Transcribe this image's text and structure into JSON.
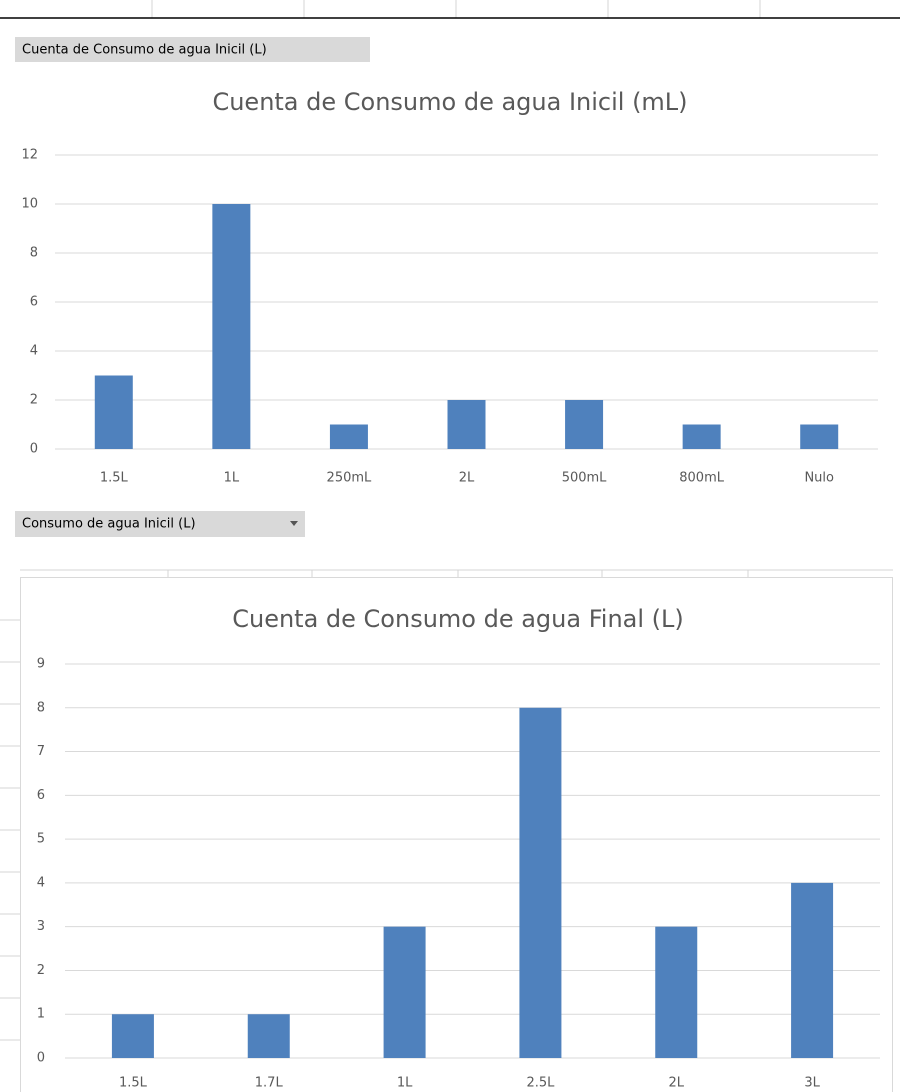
{
  "pivot_labels": {
    "values_field": "Cuenta de Consumo de agua Inicil  (L)",
    "axis_field": "Consumo de agua Inicil  (L)"
  },
  "chart_data": [
    {
      "type": "bar",
      "title": "Cuenta de Consumo de agua Inicil (mL)",
      "categories": [
        "1.5L",
        "1L",
        "250mL",
        "2L",
        "500mL",
        "800mL",
        "Nulo"
      ],
      "values": [
        3,
        10,
        1,
        2,
        2,
        1,
        1
      ],
      "color": "#4f81bd",
      "ylim": [
        0,
        12
      ],
      "yticks": [
        0,
        2,
        4,
        6,
        8,
        10,
        12
      ],
      "grid": true
    },
    {
      "type": "bar",
      "title": "Cuenta de Consumo de agua Final (L)",
      "categories": [
        "1.5L",
        "1.7L",
        "1L",
        "2.5L",
        "2L",
        "3L"
      ],
      "values": [
        1,
        1,
        3,
        8,
        3,
        4
      ],
      "color": "#4f81bd",
      "ylim": [
        0,
        9
      ],
      "yticks": [
        0,
        1,
        2,
        3,
        4,
        5,
        6,
        7,
        8,
        9
      ],
      "grid": true
    }
  ]
}
